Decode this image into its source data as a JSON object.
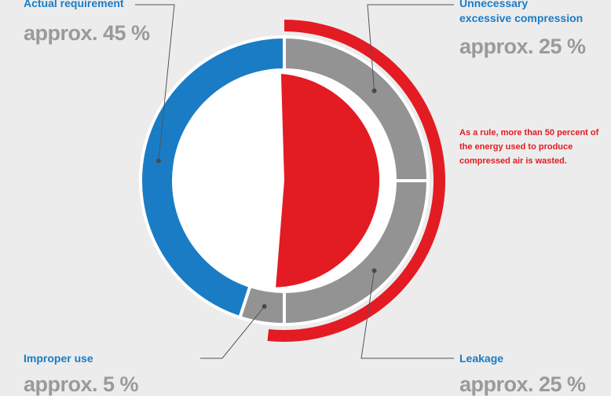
{
  "chart_data": {
    "type": "pie",
    "title": "",
    "series": [
      {
        "name": "Actual requirement",
        "label": "approx. 45 %",
        "value": 45,
        "color": "#1a7cc5"
      },
      {
        "name": "Unnecessary excessive compression",
        "label": "approx. 25 %",
        "value": 25,
        "color": "#939393"
      },
      {
        "name": "Leakage",
        "label": "approx. 25 %",
        "value": 25,
        "color": "#939393"
      },
      {
        "name": "Improper use",
        "label": "approx. 5 %",
        "value": 5,
        "color": "#939393"
      }
    ],
    "wasted_share": 50,
    "wasted_color": "#e31b23",
    "annotation": "As a rule, more than 50 percent of the energy used to produce compressed air is wasted."
  },
  "labels": {
    "actual": {
      "title": "Actual requirement",
      "value": "approx. 45 %"
    },
    "excess": {
      "title_line1": "Unnecessary",
      "title_line2": "excessive compression",
      "value": "approx. 25 %"
    },
    "improper": {
      "title": "Improper use",
      "value": "approx. 5 %"
    },
    "leakage": {
      "title": "Leakage",
      "value": "approx. 25 %"
    },
    "note": "As a rule, more than 50 percent of the energy used to produce compressed air is wasted."
  }
}
